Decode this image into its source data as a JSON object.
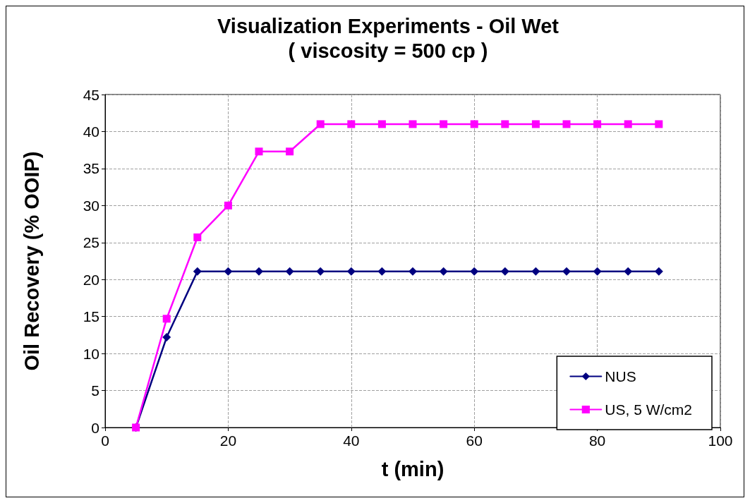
{
  "chart_data": {
    "type": "line",
    "title": "Visualization Experiments - Oil Wet",
    "subtitle": "( viscosity = 500 cp )",
    "xlabel": "t (min)",
    "ylabel": "Oil Recovery (% OOIP)",
    "x": [
      5,
      10,
      15,
      20,
      25,
      30,
      35,
      40,
      45,
      50,
      55,
      60,
      65,
      70,
      75,
      80,
      85,
      90
    ],
    "series": [
      {
        "name": "NUS",
        "color": "#000080",
        "marker": "diamond",
        "values": [
          0,
          12.2,
          21.1,
          21.1,
          21.1,
          21.1,
          21.1,
          21.1,
          21.1,
          21.1,
          21.1,
          21.1,
          21.1,
          21.1,
          21.1,
          21.1,
          21.1,
          21.1
        ]
      },
      {
        "name": "US, 5 W/cm2",
        "color": "#ff00ff",
        "marker": "square",
        "values": [
          0,
          14.7,
          25.7,
          30,
          37.3,
          37.3,
          41,
          41,
          41,
          41,
          41,
          41,
          41,
          41,
          41,
          41,
          41,
          41
        ]
      }
    ],
    "xlim": [
      0,
      100
    ],
    "xticks": [
      0,
      20,
      40,
      60,
      80,
      100
    ],
    "ylim": [
      0,
      45
    ],
    "yticks": [
      0,
      5,
      10,
      15,
      20,
      25,
      30,
      35,
      40,
      45
    ],
    "grid": true,
    "legend": "bottom right",
    "line_style": "solid"
  }
}
